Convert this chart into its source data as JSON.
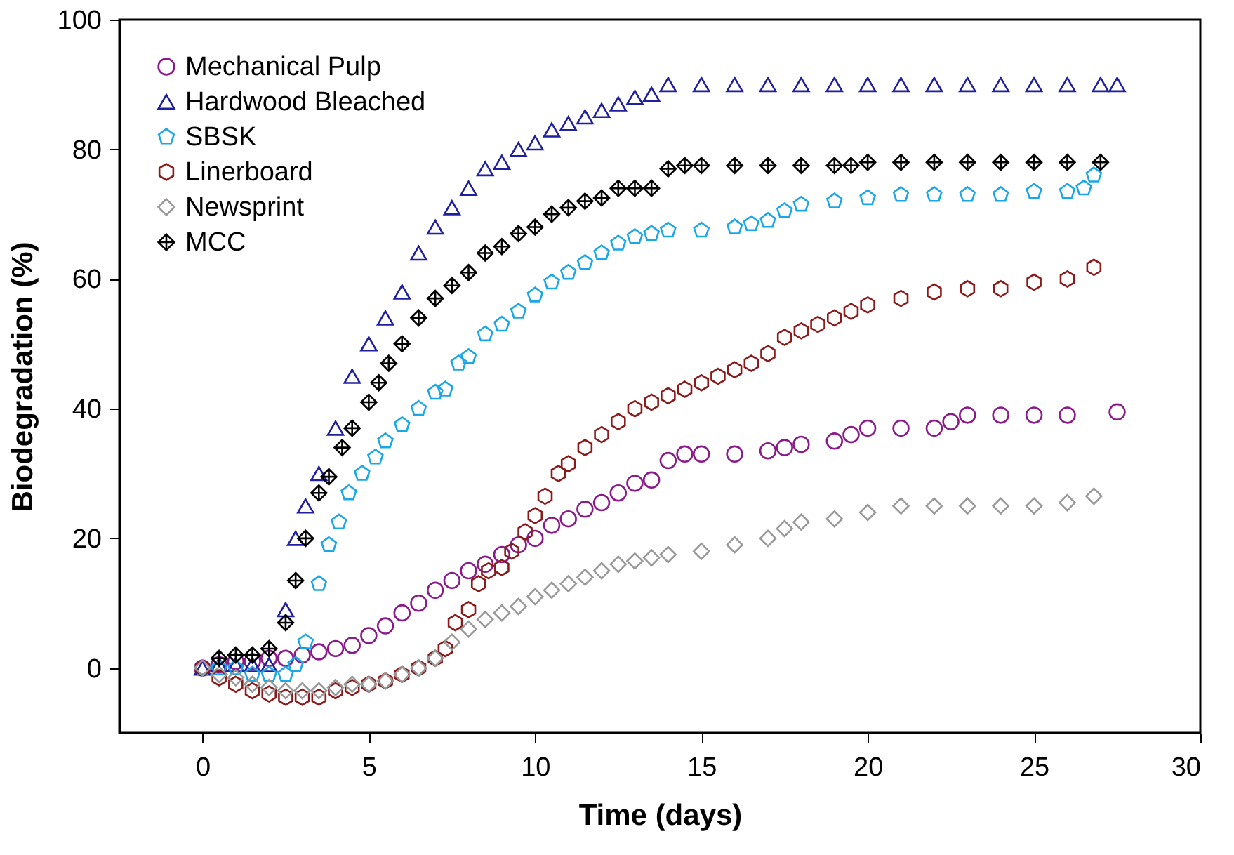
{
  "chart_data": {
    "type": "scatter",
    "xlabel": "Time (days)",
    "ylabel": "Biodegradation (%)",
    "xlim": [
      -2.5,
      30
    ],
    "xticks": [
      0,
      5,
      10,
      15,
      20,
      25,
      30
    ],
    "ylim": [
      -10,
      100
    ],
    "yticks": [
      0,
      20,
      40,
      60,
      80,
      100
    ],
    "grid": false,
    "legend": "top left",
    "series": [
      {
        "name": "Mechanical Pulp",
        "color": "#8b1a8b",
        "marker": "circle",
        "x": [
          0,
          0.5,
          1,
          1.5,
          2,
          2.5,
          3,
          3.5,
          4,
          4.5,
          5,
          5.5,
          6,
          6.5,
          7,
          7.5,
          8,
          8.5,
          9,
          9.5,
          10,
          10.5,
          11,
          11.5,
          12,
          12.5,
          13,
          13.5,
          14,
          14.5,
          15,
          16,
          17,
          17.5,
          18,
          19,
          19.5,
          20,
          21,
          22,
          22.5,
          23,
          24,
          25,
          26,
          27.5
        ],
        "values": [
          0,
          0.5,
          1,
          1,
          1.5,
          1.5,
          2,
          2.5,
          3,
          3.5,
          5,
          6.5,
          8.5,
          10,
          12,
          13.5,
          15,
          16,
          17.5,
          19,
          20,
          22,
          23,
          24.5,
          25.5,
          27,
          28.5,
          29,
          32,
          33,
          33,
          33,
          33.5,
          34,
          34.5,
          35,
          36,
          37,
          37,
          37,
          38,
          39,
          39,
          39,
          39,
          39.5
        ]
      },
      {
        "name": "Hardwood Bleached",
        "color": "#1f1f9f",
        "marker": "triangle",
        "x": [
          0,
          0.5,
          1,
          1.5,
          2,
          2.5,
          2.8,
          3.1,
          3.5,
          4,
          4.5,
          5,
          5.5,
          6,
          6.5,
          7,
          7.5,
          8,
          8.5,
          9,
          9.5,
          10,
          10.5,
          11,
          11.5,
          12,
          12.5,
          13,
          13.5,
          14,
          15,
          16,
          17,
          18,
          19,
          20,
          21,
          22,
          23,
          24,
          25,
          26,
          27,
          27.5
        ],
        "values": [
          0,
          0.5,
          0.5,
          0.5,
          0.5,
          9,
          20,
          25,
          30,
          37,
          45,
          50,
          54,
          58,
          64,
          68,
          71,
          74,
          77,
          78,
          80,
          81,
          83,
          84,
          85,
          86,
          87,
          88,
          88.5,
          90,
          90,
          90,
          90,
          90,
          90,
          90,
          90,
          90,
          90,
          90,
          90,
          90,
          90,
          90
        ]
      },
      {
        "name": "SBSK",
        "color": "#1aa7e8",
        "x": [
          0,
          0.5,
          1,
          1.5,
          2,
          2.5,
          2.8,
          3.1,
          3.5,
          3.8,
          4.1,
          4.4,
          4.8,
          5.2,
          5.5,
          6,
          6.5,
          7,
          7.3,
          7.7,
          8,
          8.5,
          9,
          9.5,
          10,
          10.5,
          11,
          11.5,
          12,
          12.5,
          13,
          13.5,
          14,
          15,
          16,
          16.5,
          17,
          17.5,
          18,
          19,
          20,
          21,
          22,
          23,
          24,
          25,
          26,
          26.5,
          26.8
        ],
        "values": [
          0,
          0,
          0,
          -1,
          -1,
          -1,
          0.5,
          4,
          13,
          19,
          22.5,
          27,
          30,
          32.5,
          35,
          37.5,
          40,
          42.5,
          43,
          47,
          48,
          51.5,
          53,
          55,
          57.5,
          59.5,
          61,
          62.5,
          64,
          65.5,
          66.5,
          67,
          67.5,
          67.5,
          68,
          68.5,
          69,
          70.5,
          71.5,
          72,
          72.5,
          73,
          73,
          73,
          73,
          73.5,
          73.5,
          74,
          76
        ]
      },
      {
        "name": "Linerboard",
        "color": "#8b1a1a",
        "x": [
          0,
          0.5,
          1,
          1.5,
          2,
          2.5,
          3,
          3.5,
          4,
          4.5,
          5,
          5.5,
          6,
          6.5,
          7,
          7.3,
          7.6,
          8,
          8.3,
          8.6,
          9,
          9.3,
          9.7,
          10,
          10.3,
          10.7,
          11,
          11.5,
          12,
          12.5,
          13,
          13.5,
          14,
          14.5,
          15,
          15.5,
          16,
          16.5,
          17,
          17.5,
          18,
          18.5,
          19,
          19.5,
          20,
          21,
          22,
          23,
          24,
          25,
          26,
          26.8
        ],
        "values": [
          0,
          -1.5,
          -2.5,
          -3.5,
          -4,
          -4.5,
          -4.5,
          -4.5,
          -3.5,
          -3,
          -2.5,
          -2,
          -1,
          0,
          1.5,
          3,
          7,
          9,
          13,
          15,
          15.5,
          18,
          21,
          23.5,
          26.5,
          30,
          31.5,
          34,
          36,
          38,
          40,
          41,
          42,
          43,
          44,
          45,
          46,
          47,
          48.5,
          51,
          52,
          53,
          54,
          55,
          56,
          57,
          58,
          58.5,
          58.5,
          59.5,
          60,
          61.8
        ]
      },
      {
        "name": "Newsprint",
        "color": "#999999",
        "marker": "diamond",
        "x": [
          0,
          0.5,
          1,
          1.5,
          2,
          2.5,
          3,
          3.5,
          4,
          4.5,
          5,
          5.5,
          6,
          6.5,
          7,
          7.5,
          8,
          8.5,
          9,
          9.5,
          10,
          10.5,
          11,
          11.5,
          12,
          12.5,
          13,
          13.5,
          14,
          15,
          16,
          17,
          17.5,
          18,
          19,
          20,
          21,
          22,
          23,
          24,
          25,
          26,
          26.8
        ],
        "values": [
          0,
          -1,
          -1.5,
          -2.5,
          -3,
          -3.5,
          -3.5,
          -3.5,
          -3,
          -2.5,
          -2.5,
          -2,
          -1,
          0,
          1.5,
          4,
          6,
          7.5,
          8.5,
          9.5,
          11,
          12,
          13,
          14,
          15,
          16,
          16.5,
          17,
          17.5,
          18,
          19,
          20,
          21.5,
          22.5,
          23,
          24,
          25,
          25,
          25,
          25,
          25,
          25.5,
          26.5
        ]
      },
      {
        "name": "MCC",
        "color": "#000000",
        "x": [
          0.5,
          1,
          1.5,
          2,
          2.5,
          2.8,
          3.1,
          3.5,
          3.8,
          4.2,
          4.5,
          5,
          5.3,
          5.6,
          6,
          6.5,
          7,
          7.5,
          8,
          8.5,
          9,
          9.5,
          10,
          10.5,
          11,
          11.5,
          12,
          12.5,
          13,
          13.5,
          14,
          14.5,
          15,
          16,
          17,
          18,
          19,
          19.5,
          20,
          21,
          22,
          23,
          24,
          25,
          26,
          27
        ],
        "values": [
          1.5,
          2,
          2,
          3,
          7,
          13.5,
          20,
          27,
          29.5,
          34,
          37,
          41,
          44,
          47,
          50,
          54,
          57,
          59,
          61,
          64,
          65,
          67,
          68,
          70,
          71,
          72,
          72.5,
          74,
          74,
          74,
          77,
          77.5,
          77.5,
          77.5,
          77.5,
          77.5,
          77.5,
          77.5,
          78,
          78,
          78,
          78,
          78,
          78,
          78,
          78
        ]
      }
    ]
  }
}
